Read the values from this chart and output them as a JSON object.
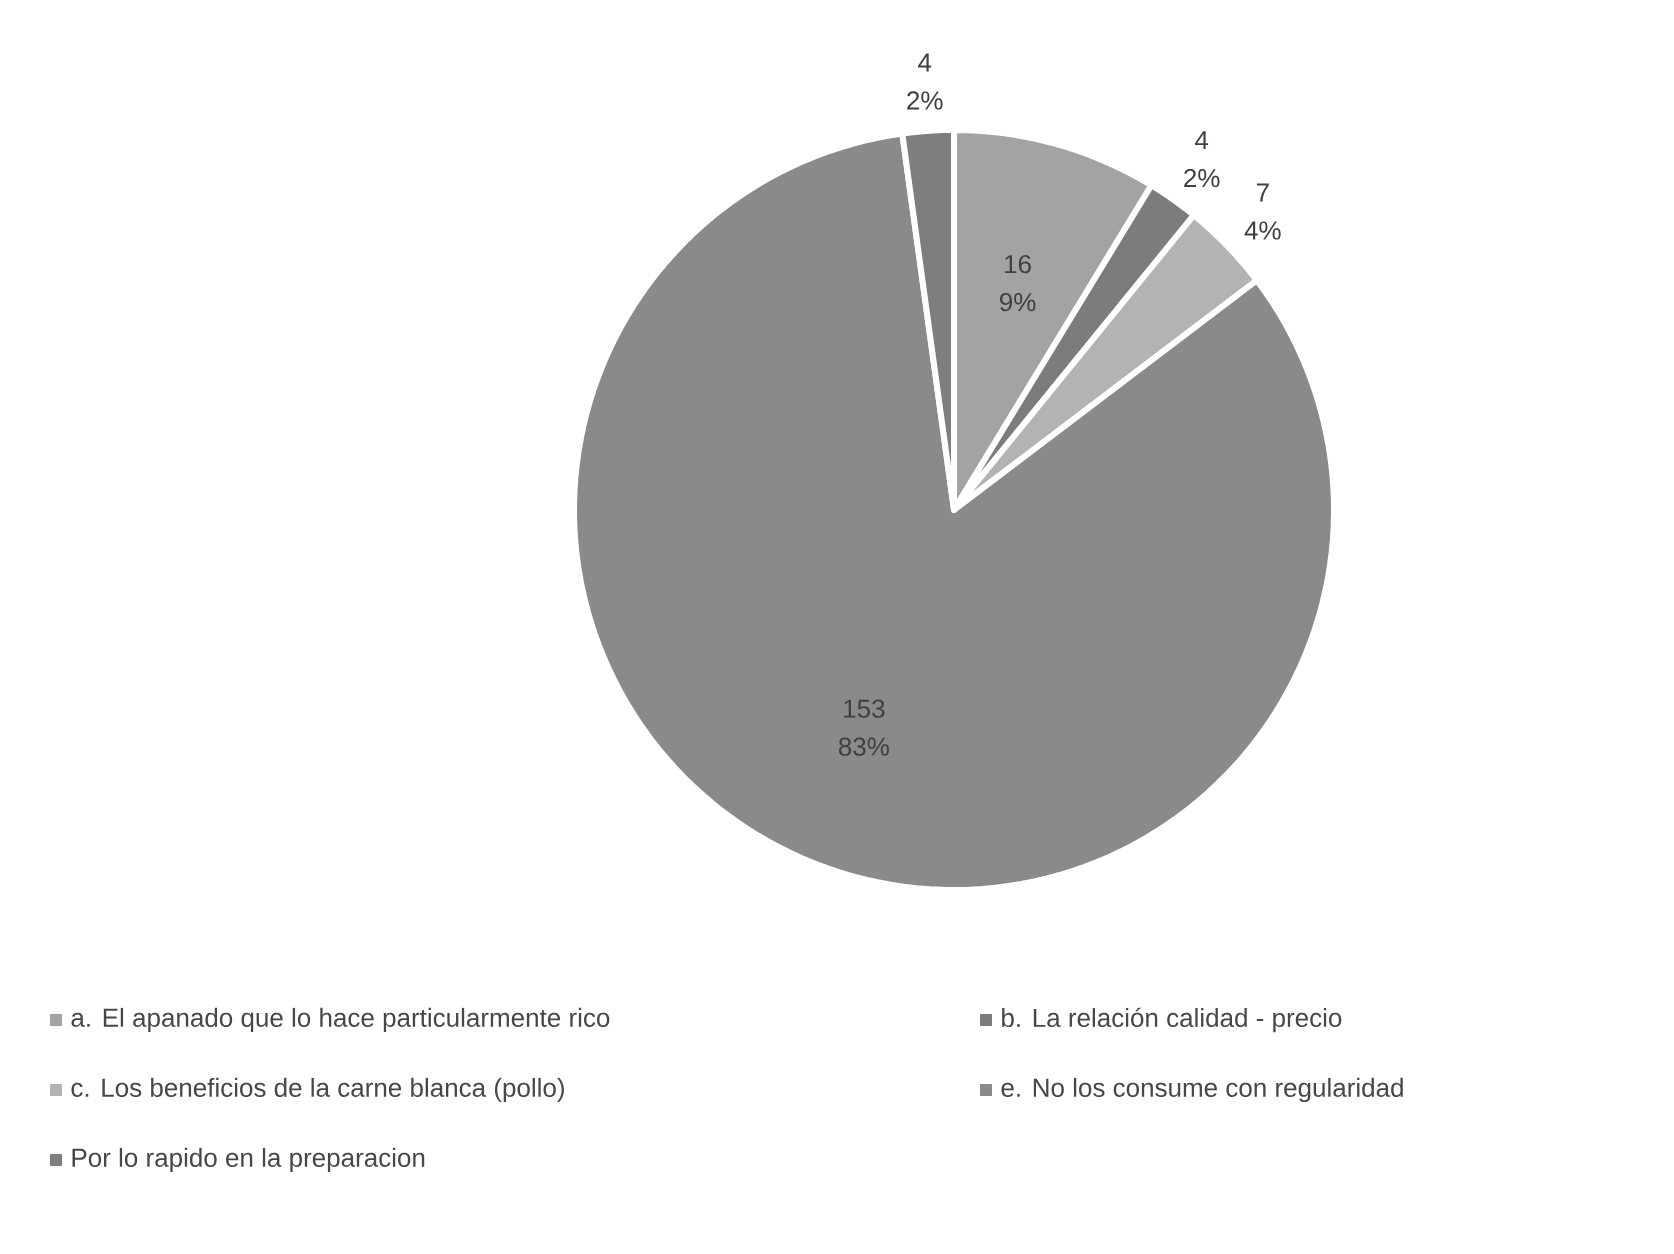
{
  "chart_data": {
    "type": "pie",
    "categories": [
      "a. El apanado que lo hace particularmente rico",
      "b. La relación calidad - precio",
      "c. Los beneficios de la carne blanca (pollo)",
      "e. No los consume con regularidad",
      "Por lo rapido en la preparacion"
    ],
    "values": [
      16,
      4,
      7,
      153,
      4
    ],
    "value_labels": [
      "16 9%",
      "4 2%",
      "7 4%",
      "153 83%",
      "4 2%"
    ],
    "colors": [
      "#a3a3a3",
      "#7c7c7c",
      "#b3b3b3",
      "#8a8a8a",
      "#7e7e7e"
    ],
    "legend": "bottom"
  }
}
